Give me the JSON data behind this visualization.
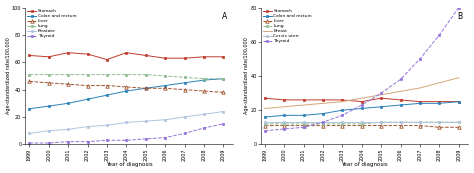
{
  "years": [
    1999,
    2000,
    2001,
    2002,
    2003,
    2004,
    2005,
    2006,
    2007,
    2008,
    2009
  ],
  "panel_A": {
    "title": "A",
    "ylabel": "Age-standardized rate/100,000",
    "xlabel": "Year of diagnosis",
    "ylim": [
      0,
      100
    ],
    "yticks": [
      0,
      20,
      40,
      60,
      80,
      100
    ],
    "series": {
      "Stomach": {
        "color": "#c0392b",
        "marker": "s",
        "linestyle": "-",
        "data": [
          65,
          64,
          67,
          66,
          62,
          67,
          65,
          63,
          63,
          64,
          64
        ]
      },
      "Colon and rectum": {
        "color": "#2980b9",
        "marker": "s",
        "linestyle": "-",
        "data": [
          26,
          28,
          30,
          33,
          36,
          39,
          41,
          43,
          45,
          47,
          48
        ]
      },
      "Liver": {
        "color": "#a0522d",
        "marker": "^",
        "linestyle": "--",
        "data": [
          46,
          45,
          44,
          43,
          43,
          42,
          41,
          41,
          40,
          39,
          38
        ]
      },
      "Lung": {
        "color": "#8fbc8f",
        "marker": "s",
        "linestyle": "--",
        "data": [
          51,
          51,
          51,
          51,
          51,
          51,
          51,
          50,
          49,
          48,
          48
        ]
      },
      "Prostate": {
        "color": "#b0c4de",
        "marker": "s",
        "linestyle": "-",
        "data": [
          8,
          10,
          11,
          13,
          14,
          16,
          17,
          18,
          20,
          22,
          24
        ]
      },
      "Thyroid": {
        "color": "#9370db",
        "marker": "s",
        "linestyle": "--",
        "data": [
          1,
          1,
          2,
          2,
          3,
          3,
          4,
          5,
          8,
          12,
          15
        ]
      }
    }
  },
  "panel_B": {
    "title": "B",
    "ylabel": "Age-standardized rate/100,000",
    "xlabel": "Year of diagnosis",
    "ylim": [
      0,
      80
    ],
    "yticks": [
      0,
      20,
      40,
      60,
      80
    ],
    "series": {
      "Stomach": {
        "color": "#c0392b",
        "marker": "s",
        "linestyle": "-",
        "data": [
          27,
          26,
          26,
          26,
          26,
          25,
          27,
          26,
          25,
          25,
          25
        ]
      },
      "Colon and rectum": {
        "color": "#2980b9",
        "marker": "s",
        "linestyle": "-",
        "data": [
          16,
          17,
          17,
          18,
          20,
          21,
          22,
          23,
          24,
          24,
          25
        ]
      },
      "Liver": {
        "color": "#a0522d",
        "marker": "^",
        "linestyle": "--",
        "data": [
          11,
          11,
          11,
          11,
          11,
          11,
          11,
          11,
          11,
          10,
          10
        ]
      },
      "Lung": {
        "color": "#8fbc8f",
        "marker": "s",
        "linestyle": "--",
        "data": [
          12,
          12,
          12,
          12,
          12,
          12,
          13,
          13,
          13,
          13,
          13
        ]
      },
      "Breast": {
        "color": "#d2a679",
        "marker": null,
        "linestyle": "-",
        "data": [
          21,
          22,
          23,
          24,
          25,
          27,
          29,
          31,
          33,
          36,
          39
        ]
      },
      "Cervix uteri": {
        "color": "#b0c4de",
        "marker": "s",
        "linestyle": "-",
        "data": [
          13,
          13,
          13,
          13,
          13,
          13,
          13,
          13,
          13,
          13,
          13
        ]
      },
      "Thyroid": {
        "color": "#9370db",
        "marker": "s",
        "linestyle": "--",
        "data": [
          8,
          9,
          10,
          13,
          17,
          23,
          30,
          38,
          50,
          64,
          80
        ]
      }
    }
  }
}
